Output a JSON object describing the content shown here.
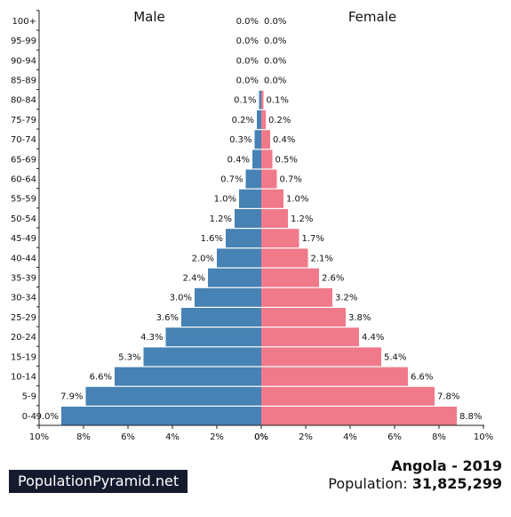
{
  "chart_data": {
    "type": "bar",
    "orientation": "horizontal-pyramid",
    "title_left": "Male",
    "title_right": "Female",
    "categories": [
      "0-4",
      "5-9",
      "10-14",
      "15-19",
      "20-24",
      "25-29",
      "30-34",
      "35-39",
      "40-44",
      "45-49",
      "50-54",
      "55-59",
      "60-64",
      "65-69",
      "70-74",
      "75-79",
      "80-84",
      "85-89",
      "90-94",
      "95-99",
      "100+"
    ],
    "series": [
      {
        "name": "Male",
        "color": "#4682b4",
        "values": [
          9.0,
          7.9,
          6.6,
          5.3,
          4.3,
          3.6,
          3.0,
          2.4,
          2.0,
          1.6,
          1.2,
          1.0,
          0.7,
          0.4,
          0.3,
          0.2,
          0.1,
          0.0,
          0.0,
          0.0,
          0.0
        ],
        "labels": [
          "9.0%",
          "7.9%",
          "6.6%",
          "5.3%",
          "4.3%",
          "3.6%",
          "3.0%",
          "2.4%",
          "2.0%",
          "1.6%",
          "1.2%",
          "1.0%",
          "0.7%",
          "0.4%",
          "0.3%",
          "0.2%",
          "0.1%",
          "0.0%",
          "0.0%",
          "0.0%",
          "0.0%"
        ]
      },
      {
        "name": "Female",
        "color": "#f07a8a",
        "values": [
          8.8,
          7.8,
          6.6,
          5.4,
          4.4,
          3.8,
          3.2,
          2.6,
          2.1,
          1.7,
          1.2,
          1.0,
          0.7,
          0.5,
          0.4,
          0.2,
          0.1,
          0.0,
          0.0,
          0.0,
          0.0
        ],
        "labels": [
          "8.8%",
          "7.8%",
          "6.6%",
          "5.4%",
          "4.4%",
          "3.8%",
          "3.2%",
          "2.6%",
          "2.1%",
          "1.7%",
          "1.2%",
          "1.0%",
          "0.7%",
          "0.5%",
          "0.4%",
          "0.2%",
          "0.1%",
          "0.0%",
          "0.0%",
          "0.0%",
          "0.0%"
        ]
      }
    ],
    "xlim": [
      0,
      10
    ],
    "left_ticks": [
      "10%",
      "8%",
      "6%",
      "4%",
      "2%",
      "0%"
    ],
    "right_ticks": [
      "0%",
      "2%",
      "4%",
      "6%",
      "8%",
      "10%"
    ],
    "grid": false
  },
  "footer": {
    "brand": "PopulationPyramid.net",
    "country_year": "Angola - 2019",
    "population_label": "Population:",
    "population_value": "31,825,299"
  }
}
